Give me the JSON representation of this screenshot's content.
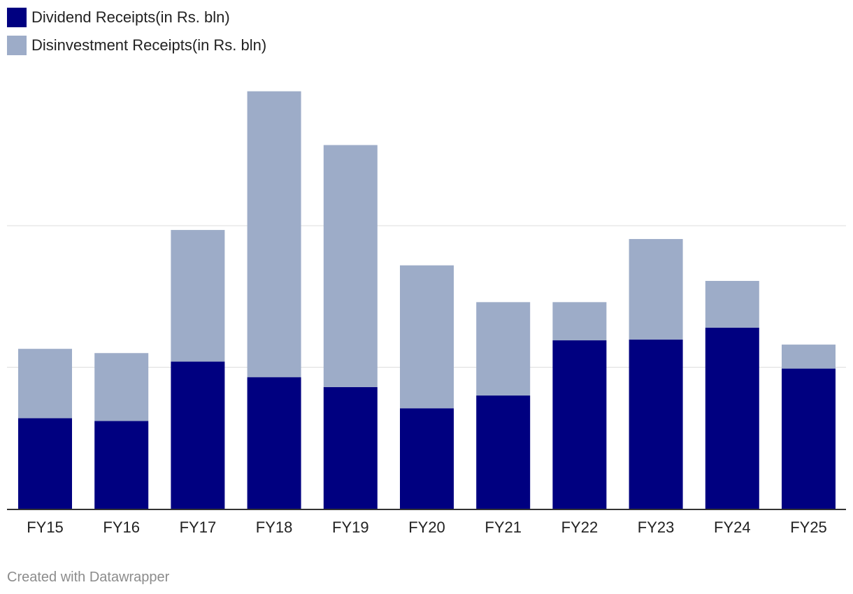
{
  "chart_data": {
    "type": "bar",
    "stacked": true,
    "categories": [
      "FY15",
      "FY16",
      "FY17",
      "FY18",
      "FY19",
      "FY20",
      "FY21",
      "FY22",
      "FY23",
      "FY24",
      "FY25"
    ],
    "series": [
      {
        "name": "Dividend Receipts(in Rs. bln)",
        "color": "#000080",
        "values": [
          320,
          310,
          520,
          465,
          430,
          355,
          400,
          595,
          598,
          640,
          495
        ]
      },
      {
        "name": "Disinvestment Receipts(in Rs. bln)",
        "color": "#9dacc8",
        "values": [
          245,
          240,
          465,
          1010,
          855,
          505,
          330,
          135,
          355,
          165,
          85
        ]
      }
    ],
    "ylim": [
      0,
      1480
    ],
    "gridlines": [
      500,
      1000
    ],
    "grid": true,
    "legend": "top-left",
    "title": "",
    "xlabel": "",
    "ylabel": ""
  },
  "footer": {
    "credit": "Created with Datawrapper"
  }
}
